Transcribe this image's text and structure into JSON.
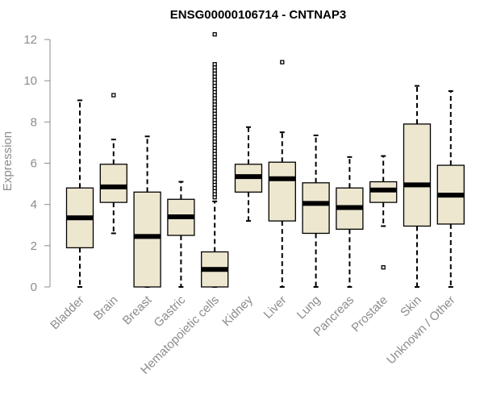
{
  "chart_data": {
    "type": "boxplot",
    "title": "ENSG00000106714 - CNTNAP3",
    "xlabel": "",
    "ylabel": "Expression",
    "ylim": [
      0,
      12
    ],
    "yticks": [
      0,
      2,
      4,
      6,
      8,
      10,
      12
    ],
    "box_fill": "#ede7d0",
    "axis_color": "#8c8c8c",
    "categories": [
      "Bladder",
      "Brain",
      "Breast",
      "Gastric",
      "Hematopoietic cells",
      "Kidney",
      "Liver",
      "Lung",
      "Pancreas",
      "Prostate",
      "Skin",
      "Unknown / Other"
    ],
    "boxes": [
      {
        "name": "Bladder",
        "min": 0,
        "q1": 1.9,
        "median": 3.35,
        "q3": 4.8,
        "max": 9.05,
        "outliers": []
      },
      {
        "name": "Brain",
        "min": 2.6,
        "q1": 4.1,
        "median": 4.85,
        "q3": 5.95,
        "max": 7.15,
        "outliers": [
          9.3
        ]
      },
      {
        "name": "Breast",
        "min": 0,
        "q1": 0,
        "median": 2.45,
        "q3": 4.6,
        "max": 7.3,
        "outliers": []
      },
      {
        "name": "Gastric",
        "min": 0,
        "q1": 2.5,
        "median": 3.4,
        "q3": 4.25,
        "max": 5.1,
        "outliers": []
      },
      {
        "name": "Hematopoietic cells",
        "min": 0,
        "q1": 0,
        "median": 0.85,
        "q3": 1.7,
        "max": 4.15,
        "outliers": [
          4.35,
          4.5,
          4.65,
          4.8,
          4.95,
          5.1,
          5.25,
          5.4,
          5.55,
          5.7,
          5.85,
          6.0,
          6.15,
          6.3,
          6.45,
          6.6,
          6.75,
          6.9,
          7.05,
          7.2,
          7.35,
          7.5,
          7.65,
          7.8,
          7.95,
          8.1,
          8.25,
          8.4,
          8.55,
          8.7,
          8.85,
          9.0,
          9.15,
          9.3,
          9.45,
          9.6,
          9.75,
          9.9,
          10.05,
          10.2,
          10.35,
          10.5,
          10.65,
          10.8,
          12.25
        ]
      },
      {
        "name": "Kidney",
        "min": 3.2,
        "q1": 4.6,
        "median": 5.35,
        "q3": 5.95,
        "max": 7.75,
        "outliers": []
      },
      {
        "name": "Liver",
        "min": 0,
        "q1": 3.2,
        "median": 5.25,
        "q3": 6.05,
        "max": 7.5,
        "outliers": [
          10.9
        ]
      },
      {
        "name": "Lung",
        "min": 0,
        "q1": 2.6,
        "median": 4.05,
        "q3": 5.05,
        "max": 7.35,
        "outliers": []
      },
      {
        "name": "Pancreas",
        "min": 0,
        "q1": 2.8,
        "median": 3.85,
        "q3": 4.8,
        "max": 6.3,
        "outliers": []
      },
      {
        "name": "Prostate",
        "min": 2.95,
        "q1": 4.1,
        "median": 4.7,
        "q3": 5.1,
        "max": 6.35,
        "outliers": [
          0.95
        ]
      },
      {
        "name": "Skin",
        "min": 0,
        "q1": 2.95,
        "median": 4.95,
        "q3": 7.9,
        "max": 9.75,
        "outliers": []
      },
      {
        "name": "Unknown / Other",
        "min": 0,
        "q1": 3.05,
        "median": 4.45,
        "q3": 5.9,
        "max": 9.5,
        "outliers": []
      }
    ]
  }
}
